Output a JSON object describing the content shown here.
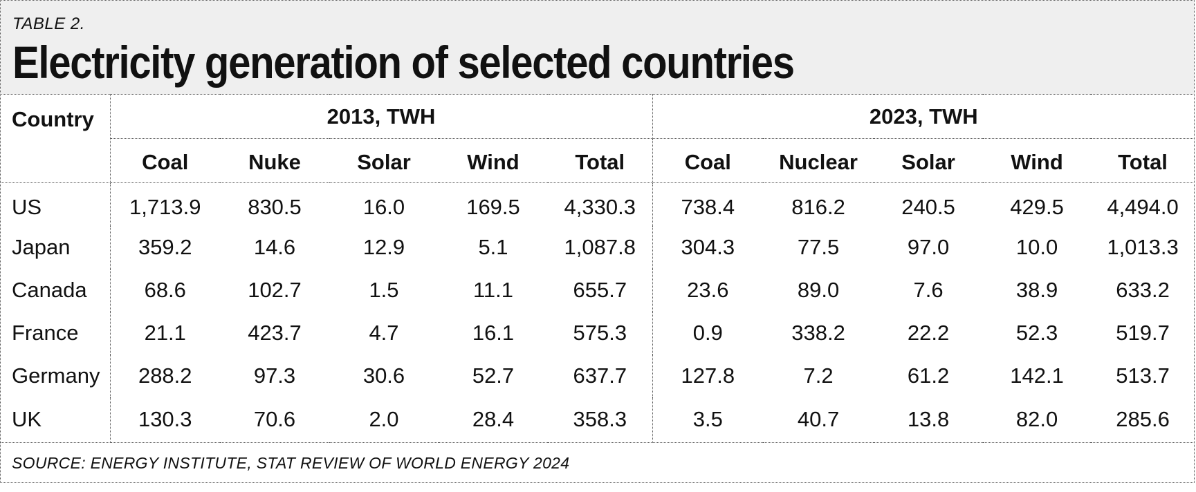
{
  "header": {
    "table_label": "TABLE 2.",
    "title": "Electricity generation of selected countries"
  },
  "table": {
    "country_header": "Country",
    "group_2013": "2013, TWH",
    "group_2023": "2023, TWH",
    "columns_2013": [
      "Coal",
      "Nuke",
      "Solar",
      "Wind",
      "Total"
    ],
    "columns_2023": [
      "Coal",
      "Nuclear",
      "Solar",
      "Wind",
      "Total"
    ],
    "rows": [
      {
        "country": "US",
        "v2013": [
          "1,713.9",
          "830.5",
          "16.0",
          "169.5",
          "4,330.3"
        ],
        "v2023": [
          "738.4",
          "816.2",
          "240.5",
          "429.5",
          "4,494.0"
        ]
      },
      {
        "country": "Japan",
        "v2013": [
          "359.2",
          "14.6",
          "12.9",
          "5.1",
          "1,087.8"
        ],
        "v2023": [
          "304.3",
          "77.5",
          "97.0",
          "10.0",
          "1,013.3"
        ]
      },
      {
        "country": "Canada",
        "v2013": [
          "68.6",
          "102.7",
          "1.5",
          "11.1",
          "655.7"
        ],
        "v2023": [
          "23.6",
          "89.0",
          "7.6",
          "38.9",
          "633.2"
        ]
      },
      {
        "country": "France",
        "v2013": [
          "21.1",
          "423.7",
          "4.7",
          "16.1",
          "575.3"
        ],
        "v2023": [
          "0.9",
          "338.2",
          "22.2",
          "52.3",
          "519.7"
        ]
      },
      {
        "country": "Germany",
        "v2013": [
          "288.2",
          "97.3",
          "30.6",
          "52.7",
          "637.7"
        ],
        "v2023": [
          "127.8",
          "7.2",
          "61.2",
          "142.1",
          "513.7"
        ]
      },
      {
        "country": "UK",
        "v2013": [
          "130.3",
          "70.6",
          "2.0",
          "28.4",
          "358.3"
        ],
        "v2023": [
          "3.5",
          "40.7",
          "13.8",
          "82.0",
          "285.6"
        ]
      }
    ]
  },
  "source": "SOURCE: ENERGY INSTITUTE, STAT REVIEW OF WORLD ENERGY 2024"
}
